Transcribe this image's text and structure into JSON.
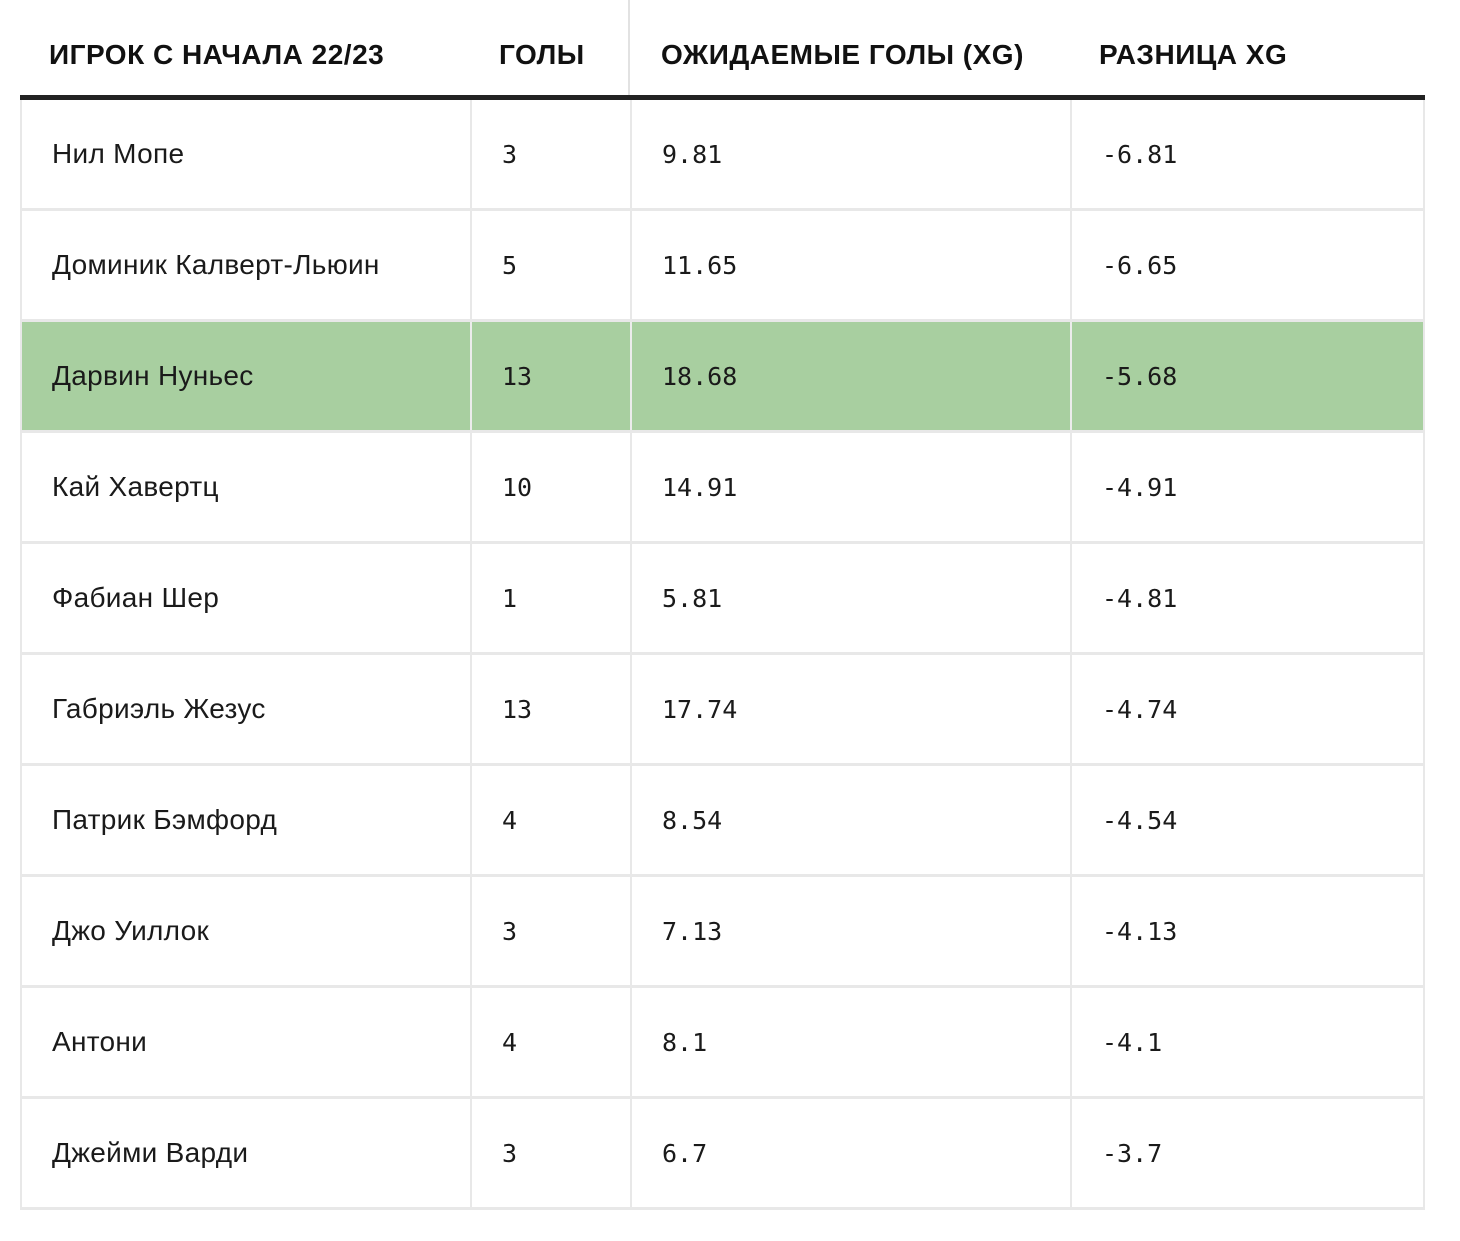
{
  "chart_data": {
    "type": "table",
    "columns": [
      "ИГРОК С НАЧАЛА 22/23",
      "ГОЛЫ",
      "ОЖИДАЕМЫЕ ГОЛЫ (XG)",
      "РАЗНИЦА XG"
    ],
    "rows": [
      {
        "player": "Нил Мопе",
        "goals": "3",
        "xg": "9.81",
        "diff": "-6.81"
      },
      {
        "player": "Доминик Калверт-Льюин",
        "goals": "5",
        "xg": "11.65",
        "diff": "-6.65"
      },
      {
        "player": "Дарвин Нуньес",
        "goals": "13",
        "xg": "18.68",
        "diff": "-5.68"
      },
      {
        "player": "Кай Хавертц",
        "goals": "10",
        "xg": "14.91",
        "diff": "-4.91"
      },
      {
        "player": "Фабиан Шер",
        "goals": "1",
        "xg": "5.81",
        "diff": "-4.81"
      },
      {
        "player": "Габриэль Жезус",
        "goals": "13",
        "xg": "17.74",
        "diff": "-4.74"
      },
      {
        "player": "Патрик Бэмфорд",
        "goals": "4",
        "xg": "8.54",
        "diff": "-4.54"
      },
      {
        "player": "Джо Уиллок",
        "goals": "3",
        "xg": "7.13",
        "diff": "-4.13"
      },
      {
        "player": "Антони",
        "goals": "4",
        "xg": "8.1",
        "diff": "-4.1"
      },
      {
        "player": "Джейми Варди",
        "goals": "3",
        "xg": "6.7",
        "diff": "-3.7"
      }
    ],
    "highlighted_row": 2,
    "highlight_color": "#a8cfa0",
    "header_rule_color": "#222222"
  }
}
